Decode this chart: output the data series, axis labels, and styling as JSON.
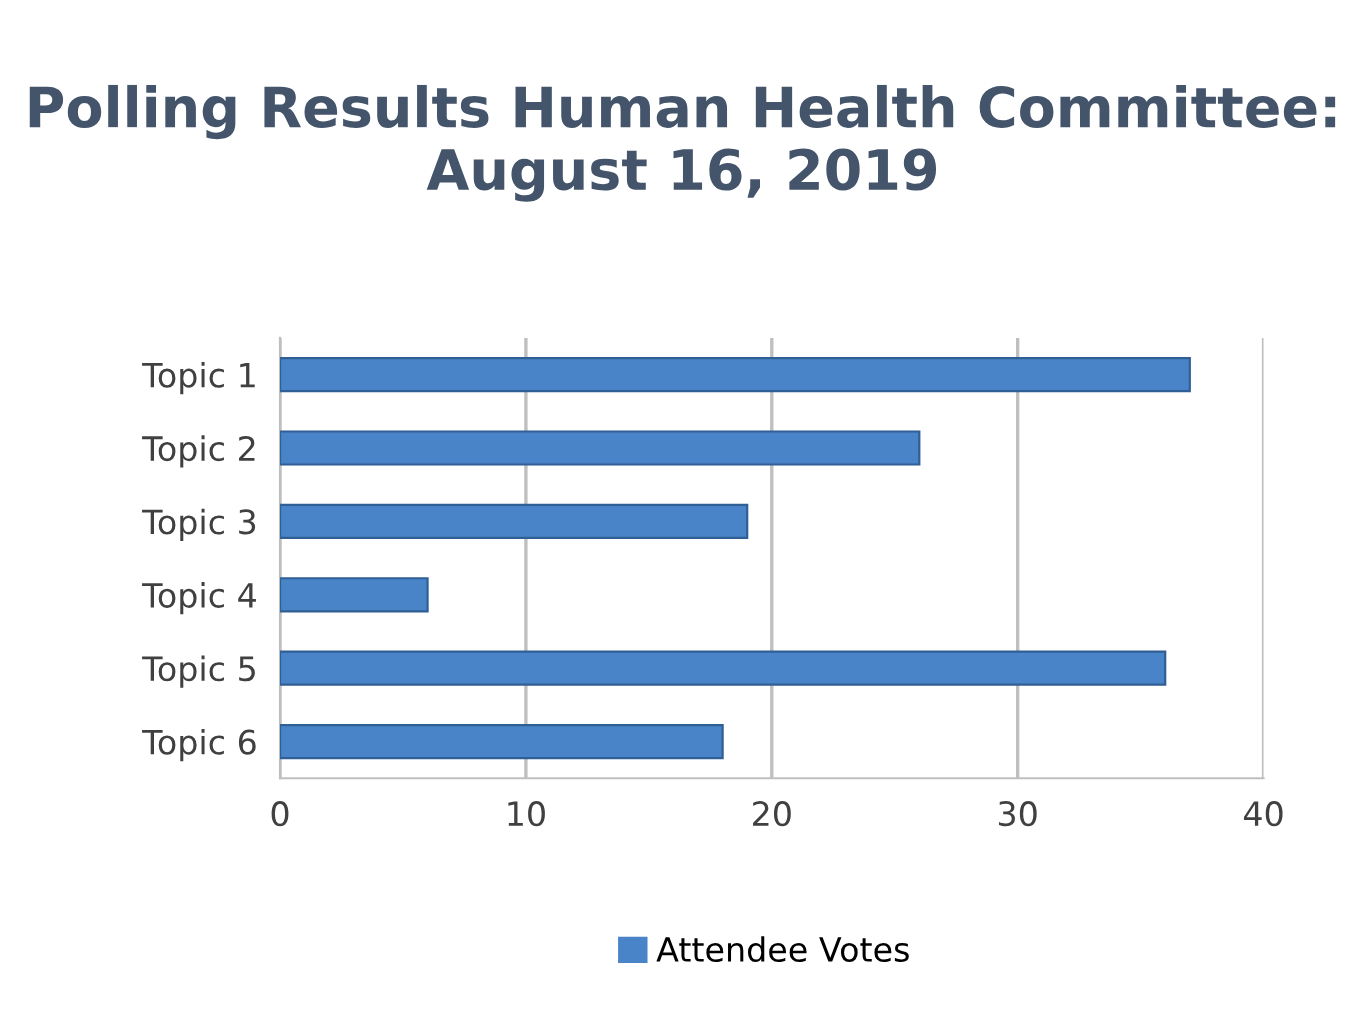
{
  "chart_data": {
    "type": "bar",
    "orientation": "horizontal",
    "title": "Polling Results Human Health Committee: August 16, 2019",
    "categories": [
      "Topic 1",
      "Topic 2",
      "Topic 3",
      "Topic 4",
      "Topic 5",
      "Topic 6"
    ],
    "series": [
      {
        "name": "Attendee Votes",
        "color": "#4a84c8",
        "values": [
          37,
          26,
          19,
          6,
          36,
          18
        ]
      }
    ],
    "xlim": [
      0,
      40
    ],
    "xticks": [
      0,
      10,
      20,
      30,
      40
    ],
    "grid": "x",
    "legend": "bottom"
  }
}
